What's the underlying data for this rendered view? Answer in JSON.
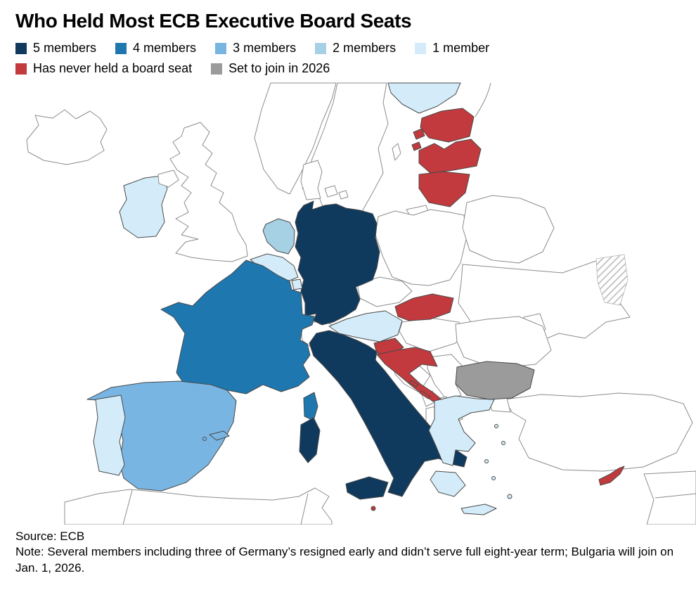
{
  "title": "Who Held Most ECB Executive Board Seats",
  "legend": {
    "rows": [
      [
        {
          "label": "5 members",
          "category": "5"
        },
        {
          "label": "4 members",
          "category": "4"
        },
        {
          "label": "3 members",
          "category": "3"
        },
        {
          "label": "2 members",
          "category": "2"
        },
        {
          "label": "1 member",
          "category": "1"
        }
      ],
      [
        {
          "label": "Has never held a board seat",
          "category": "never"
        },
        {
          "label": "Set to join in 2026",
          "category": "join2026"
        }
      ]
    ]
  },
  "map": {
    "category_colors": {
      "5": "#0f3a5d",
      "4": "#1e77ae",
      "3": "#79b5e2",
      "2": "#a6d0e4",
      "1": "#d4ecf9",
      "never": "#c23a3d",
      "join2026": "#9b9b9b"
    },
    "colored_border": "#4a4a4a",
    "country_categories": {
      "Germany": "5",
      "Italy": "5",
      "France": "4",
      "Spain": "3",
      "Netherlands": "2",
      "Ireland": "1",
      "Belgium": "1",
      "Luxembourg": "1",
      "Austria": "1",
      "Portugal": "1",
      "Finland": "1",
      "Greece": "1",
      "Estonia": "never",
      "Latvia": "never",
      "Lithuania": "never",
      "Slovakia": "never",
      "Slovenia": "never",
      "Croatia": "never",
      "Cyprus": "never",
      "Malta": "never",
      "Bulgaria": "join2026"
    }
  },
  "footer": {
    "source": "Source: ECB",
    "note": "Note: Several members including three of Germany’s resigned early and didn’t serve full eight-year term; Bulgaria will join on Jan. 1, 2026."
  },
  "chart_data": {
    "type": "choropleth",
    "title": "Who Held Most ECB Executive Board Seats",
    "legend_position": "top",
    "categories": [
      {
        "label": "5 members",
        "color": "#0f3a5d",
        "countries": [
          "Germany",
          "Italy"
        ]
      },
      {
        "label": "4 members",
        "color": "#1e77ae",
        "countries": [
          "France"
        ]
      },
      {
        "label": "3 members",
        "color": "#79b5e2",
        "countries": [
          "Spain"
        ]
      },
      {
        "label": "2 members",
        "color": "#a6d0e4",
        "countries": [
          "Netherlands"
        ]
      },
      {
        "label": "1 member",
        "color": "#d4ecf9",
        "countries": [
          "Ireland",
          "Belgium",
          "Luxembourg",
          "Austria",
          "Portugal",
          "Finland",
          "Greece"
        ]
      },
      {
        "label": "Has never held a board seat",
        "color": "#c23a3d",
        "countries": [
          "Estonia",
          "Latvia",
          "Lithuania",
          "Slovakia",
          "Slovenia",
          "Croatia",
          "Cyprus",
          "Malta"
        ]
      },
      {
        "label": "Set to join in 2026",
        "color": "#9b9b9b",
        "countries": [
          "Bulgaria"
        ]
      }
    ],
    "uncolored_countries_shown": [
      "Iceland",
      "United Kingdom",
      "Norway",
      "Sweden",
      "Denmark",
      "Poland",
      "Czechia",
      "Switzerland",
      "Hungary",
      "Romania",
      "Serbia",
      "Bosnia and Herzegovina",
      "Montenegro",
      "Kosovo",
      "Albania",
      "North Macedonia",
      "Moldova",
      "Ukraine",
      "Belarus",
      "Russia",
      "Turkey"
    ],
    "source": "Source: ECB",
    "note": "Note: Several members including three of Germany’s resigned early and didn’t serve full eight-year term; Bulgaria will join on Jan. 1, 2026."
  }
}
